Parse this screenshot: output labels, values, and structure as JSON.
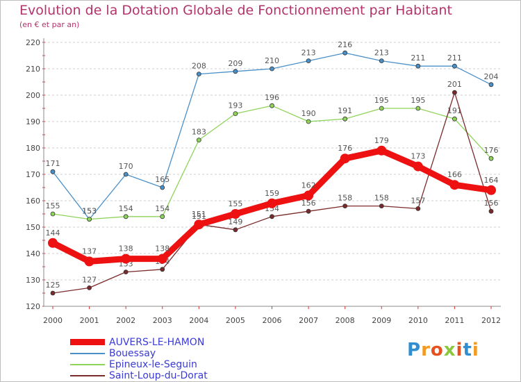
{
  "title": "Evolution de la Dotation Globale de Fonctionnement par Habitant",
  "subtitle": "(en € et par an)",
  "brand": {
    "text": "Proxiti",
    "letters": [
      "P",
      "r",
      "o",
      "x",
      "i",
      "t",
      "i"
    ],
    "colors": [
      "#2f8fd0",
      "#f39a1f",
      "#e8501e",
      "#8cc63f",
      "#e8501e",
      "#2f8fd0",
      "#f39a1f"
    ]
  },
  "chart_data": {
    "type": "line",
    "title": "Evolution de la Dotation Globale de Fonctionnement par Habitant",
    "subtitle": "(en € et par an)",
    "xlabel": "",
    "ylabel": "",
    "x": [
      "2000",
      "2001",
      "2002",
      "2003",
      "2004",
      "2005",
      "2006",
      "2007",
      "2008",
      "2009",
      "2010",
      "2011",
      "2012"
    ],
    "yticks": [
      "120",
      "130",
      "140",
      "150",
      "160",
      "170",
      "180",
      "190",
      "200",
      "210",
      "220"
    ],
    "ylim": [
      120,
      220
    ],
    "grid": "horizontal dashed",
    "legend_position": "bottom-left",
    "series": [
      {
        "name": "Bouessay",
        "color": "#4a90c8",
        "values": [
          171,
          153,
          170,
          165,
          208,
          209,
          210,
          213,
          216,
          213,
          211,
          211,
          204
        ],
        "labels": [
          "171",
          "153",
          "170",
          "165",
          "208",
          "209",
          "210",
          "213",
          "216",
          "213",
          "211",
          "211",
          "204"
        ]
      },
      {
        "name": "Epineux-le-Seguin",
        "color": "#8ed35a",
        "values": [
          155,
          153,
          154,
          154,
          183,
          193,
          196,
          190,
          191,
          195,
          195,
          191,
          176
        ],
        "labels": [
          "155",
          "153",
          "154",
          "154",
          "183",
          "193",
          "196",
          "190",
          "191",
          "195",
          "195",
          "191",
          "176"
        ]
      },
      {
        "name": "Saint-Loup-du-Dorat",
        "color": "#7a2a2a",
        "values": [
          125,
          127,
          133,
          134,
          151,
          149,
          154,
          156,
          158,
          158,
          157,
          201,
          156
        ],
        "labels": [
          "125",
          "127",
          "133",
          "134",
          "151",
          "149",
          "154",
          "156",
          "158",
          "158",
          "157",
          "201",
          "156"
        ]
      },
      {
        "name": "AUVERS-LE-HAMON",
        "color": "#ee1111",
        "values": [
          144,
          137,
          138,
          138,
          151,
          155,
          159,
          162,
          176,
          179,
          173,
          166,
          164
        ],
        "labels": [
          "144",
          "137",
          "138",
          "138",
          "151",
          "155",
          "159",
          "162",
          "176",
          "179",
          "173",
          "166",
          "164"
        ]
      }
    ],
    "legend": [
      {
        "name": "AUVERS-LE-HAMON",
        "color": "#ee1111"
      },
      {
        "name": "Bouessay",
        "color": "#4a90c8"
      },
      {
        "name": "Epineux-le-Seguin",
        "color": "#8ed35a"
      },
      {
        "name": "Saint-Loup-du-Dorat",
        "color": "#7a2a2a"
      }
    ]
  }
}
